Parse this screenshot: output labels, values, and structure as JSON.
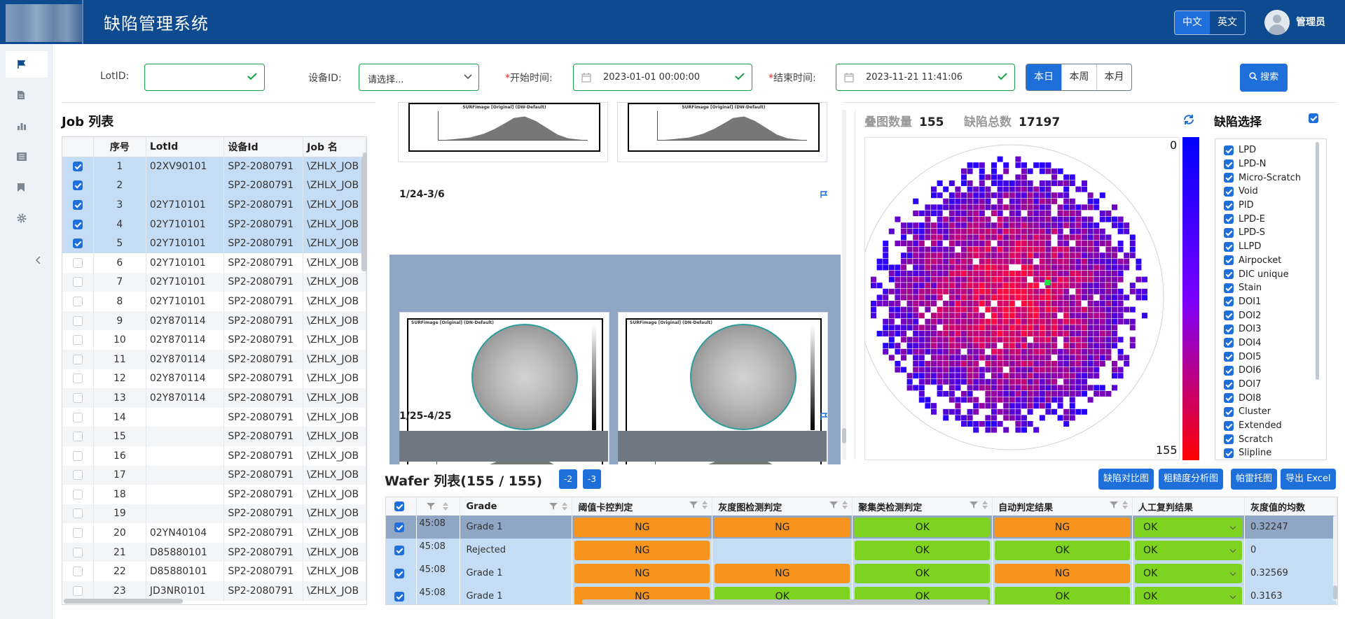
{
  "header": {
    "title": "缺陷管理系统",
    "lang_cn": "中文",
    "lang_en": "英文",
    "user": "管理员"
  },
  "filters": {
    "lot_label": "LotID:",
    "equip_label": "设备ID:",
    "equip_placeholder": "请选择...",
    "start_label": "开始时间:",
    "start_value": "2023-01-01 00:00:00",
    "end_label": "结束时间:",
    "end_value": "2023-11-21 11:41:06",
    "range_today": "本日",
    "range_week": "本周",
    "range_month": "本月",
    "search": "搜索"
  },
  "job": {
    "title": "Job 列表",
    "cols": [
      "序号",
      "LotId",
      "设备Id",
      "Job 名"
    ],
    "rows": [
      {
        "n": "1",
        "lot": "02XV90101",
        "eq": "SP2-2080791",
        "job": "\\ZHLX_JOB",
        "sel": true
      },
      {
        "n": "2",
        "lot": "",
        "eq": "SP2-2080791",
        "job": "\\ZHLX_JOB",
        "sel": true
      },
      {
        "n": "3",
        "lot": "02Y710101",
        "eq": "SP2-2080791",
        "job": "\\ZHLX_JOB",
        "sel": true
      },
      {
        "n": "4",
        "lot": "02Y710101",
        "eq": "SP2-2080791",
        "job": "\\ZHLX_JOB",
        "sel": true
      },
      {
        "n": "5",
        "lot": "02Y710101",
        "eq": "SP2-2080791",
        "job": "\\ZHLX_JOB",
        "sel": true
      },
      {
        "n": "6",
        "lot": "02Y710101",
        "eq": "SP2-2080791",
        "job": "\\ZHLX_JOB",
        "sel": false
      },
      {
        "n": "7",
        "lot": "02Y710101",
        "eq": "SP2-2080791",
        "job": "\\ZHLX_JOB",
        "sel": false
      },
      {
        "n": "8",
        "lot": "02Y710101",
        "eq": "SP2-2080791",
        "job": "\\ZHLX_JOB",
        "sel": false
      },
      {
        "n": "9",
        "lot": "02Y870114",
        "eq": "SP2-2080791",
        "job": "\\ZHLX_JOB",
        "sel": false
      },
      {
        "n": "10",
        "lot": "02Y870114",
        "eq": "SP2-2080791",
        "job": "\\ZHLX_JOB",
        "sel": false
      },
      {
        "n": "11",
        "lot": "02Y870114",
        "eq": "SP2-2080791",
        "job": "\\ZHLX_JOB",
        "sel": false
      },
      {
        "n": "12",
        "lot": "02Y870114",
        "eq": "SP2-2080791",
        "job": "\\ZHLX_JOB",
        "sel": false
      },
      {
        "n": "13",
        "lot": "02Y870114",
        "eq": "SP2-2080791",
        "job": "\\ZHLX_JOB",
        "sel": false
      },
      {
        "n": "14",
        "lot": "",
        "eq": "SP2-2080791",
        "job": "\\ZHLX_JOB",
        "sel": false
      },
      {
        "n": "15",
        "lot": "",
        "eq": "SP2-2080791",
        "job": "\\ZHLX_JOB",
        "sel": false
      },
      {
        "n": "16",
        "lot": "",
        "eq": "SP2-2080791",
        "job": "\\ZHLX_JOB",
        "sel": false
      },
      {
        "n": "17",
        "lot": "",
        "eq": "SP2-2080791",
        "job": "\\ZHLX_JOB",
        "sel": false
      },
      {
        "n": "18",
        "lot": "",
        "eq": "SP2-2080791",
        "job": "\\ZHLX_JOB",
        "sel": false
      },
      {
        "n": "19",
        "lot": "",
        "eq": "SP2-2080791",
        "job": "\\ZHLX_JOB",
        "sel": false
      },
      {
        "n": "20",
        "lot": "02YN40104",
        "eq": "SP2-2080791",
        "job": "\\ZHLX_JOB",
        "sel": false
      },
      {
        "n": "21",
        "lot": "D85880101",
        "eq": "SP2-2080791",
        "job": "\\ZHLX_JOB",
        "sel": false
      },
      {
        "n": "22",
        "lot": "D85880101",
        "eq": "SP2-2080791",
        "job": "\\ZHLX_JOB",
        "sel": false
      },
      {
        "n": "23",
        "lot": "JD3NR0101",
        "eq": "SP2-2080791",
        "job": "\\ZHLX_JOB",
        "sel": false
      }
    ]
  },
  "gallery": {
    "hist_caption": "SURFimage [Original] (DW-Default)",
    "map_caption": "SURFimage [Original] (DN-Default)",
    "group1": "1/24-3/6",
    "group2": "1/25-4/25"
  },
  "stats": {
    "overlay_label": "叠图数量",
    "overlay_value": "155",
    "defects_label": "缺陷总数",
    "defects_value": "17197"
  },
  "scale": {
    "min": "0",
    "max": "155"
  },
  "colors": {
    "primary": "#1e6fd9",
    "header": "#0d4a8f",
    "ng": "#f7941d",
    "ok": "#7ed321",
    "selected_row": "#c5dcf5"
  },
  "defects": {
    "title": "缺陷选择",
    "items": [
      "LPD",
      "LPD-N",
      "Micro-Scratch",
      "Void",
      "PID",
      "LPD-E",
      "LPD-S",
      "LLPD",
      "Airpocket",
      "DIC unique",
      "Stain",
      "DOI1",
      "DOI2",
      "DOI3",
      "DOI4",
      "DOI5",
      "DOI6",
      "DOI7",
      "DOI8",
      "Cluster",
      "Extended",
      "Scratch",
      "Slipline"
    ]
  },
  "wafer": {
    "title": "Wafer 列表(155 / 155)",
    "chip1": "-2",
    "chip2": "-3",
    "buttons": [
      "缺陷对比图",
      "粗糙度分析图",
      "帕雷托图",
      "导出 Excel"
    ],
    "cols": [
      "Grade",
      "阈值卡控判定",
      "灰度图检测判定",
      "聚集类检测判定",
      "自动判定结果",
      "人工复判结果",
      "灰度值的均数"
    ],
    "rows": [
      {
        "time": "45:08",
        "grade": "Grade 1",
        "thr": "NG",
        "gray": "NG",
        "clu": "OK",
        "auto": "NG",
        "man": "OK",
        "mean": "0.32247"
      },
      {
        "time": "45:08",
        "grade": "Rejected",
        "thr": "NG",
        "gray": "",
        "clu": "OK",
        "auto": "OK",
        "man": "OK",
        "mean": "0"
      },
      {
        "time": "45:08",
        "grade": "Grade 1",
        "thr": "NG",
        "gray": "NG",
        "clu": "OK",
        "auto": "NG",
        "man": "OK",
        "mean": "0.32569"
      },
      {
        "time": "45:08",
        "grade": "Grade 1",
        "thr": "NG",
        "gray": "OK",
        "clu": "OK",
        "auto": "OK",
        "man": "OK",
        "mean": "0.3163"
      }
    ]
  },
  "icons": {
    "flag": "flag-icon",
    "doc": "document-icon",
    "chart": "bar-chart-icon",
    "list": "list-icon",
    "bookmark": "bookmark-icon",
    "gear": "gear-icon",
    "refresh": "refresh-icon"
  }
}
